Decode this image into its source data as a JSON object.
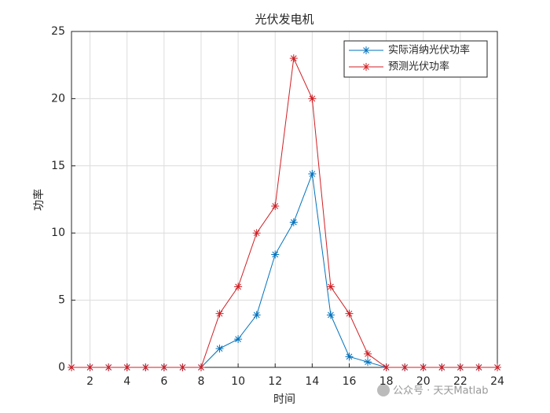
{
  "chart_data": {
    "type": "line",
    "title": "光伏发电机",
    "x_label": "时间",
    "y_label": "功率",
    "x": [
      1,
      2,
      3,
      4,
      5,
      6,
      7,
      8,
      9,
      10,
      11,
      12,
      13,
      14,
      15,
      16,
      17,
      18,
      19,
      20,
      21,
      22,
      23,
      24
    ],
    "series": [
      {
        "name": "实际消纳光伏功率",
        "color": "#0072bd",
        "values": [
          0,
          0,
          0,
          0,
          0,
          0,
          0,
          0,
          1.4,
          2.1,
          3.9,
          8.4,
          10.8,
          14.4,
          3.9,
          0.8,
          0.4,
          0,
          0,
          0,
          0,
          0,
          0,
          0
        ]
      },
      {
        "name": "预测光伏功率",
        "color": "#d01f24",
        "values": [
          0,
          0,
          0,
          0,
          0,
          0,
          0,
          0,
          4,
          6,
          10,
          12,
          23,
          20,
          6,
          4,
          1,
          0,
          0,
          0,
          0,
          0,
          0,
          0
        ]
      }
    ],
    "xlim": [
      1,
      24
    ],
    "xticks": [
      2,
      4,
      6,
      8,
      10,
      12,
      14,
      16,
      18,
      20,
      22,
      24
    ],
    "ylim": [
      0,
      25
    ],
    "yticks": [
      0,
      5,
      10,
      15,
      20,
      25
    ],
    "grid": true,
    "legend": "northeast",
    "watermark": "公众号 · 天天Matlab"
  }
}
